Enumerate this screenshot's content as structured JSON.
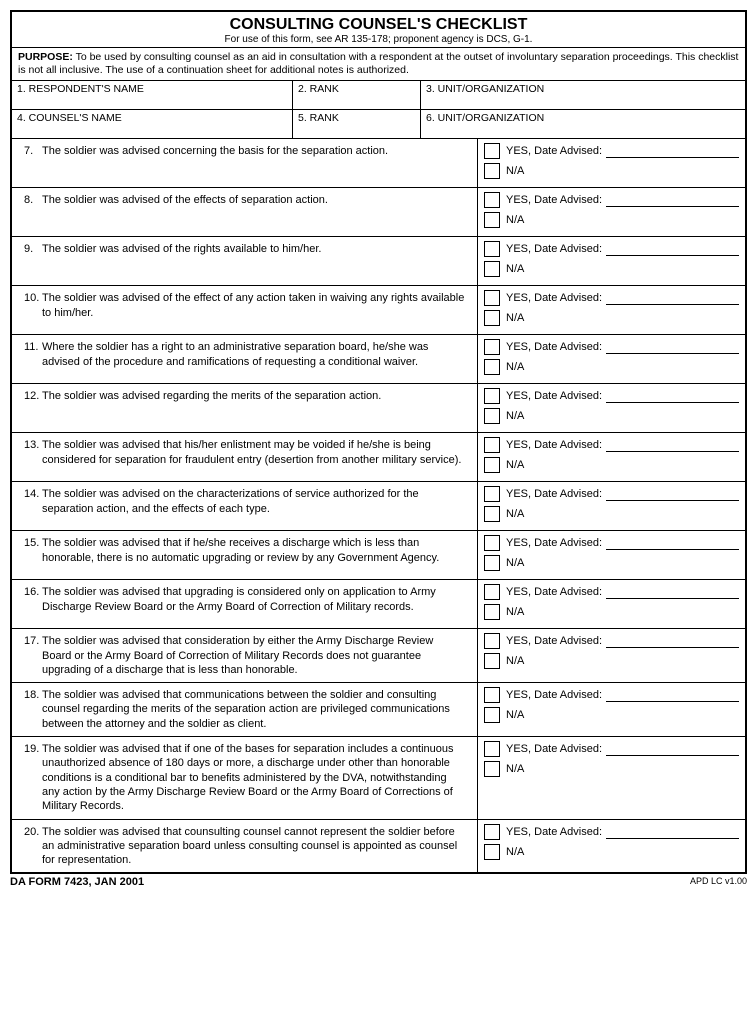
{
  "header": {
    "title": "CONSULTING COUNSEL'S CHECKLIST",
    "subtitle": "For use of this form, see AR 135-178; proponent agency is DCS, G-1."
  },
  "purpose": {
    "label": "PURPOSE:",
    "text": "To be used by consulting counsel as an aid in consultation with a respondent at the outset of involuntary separation proceedings.  This checklist is not all inclusive.  The use of a continuation sheet for additional notes is authorized."
  },
  "fields": {
    "f1": "1. RESPONDENT'S NAME",
    "f2": "2. RANK",
    "f3": "3. UNIT/ORGANIZATION",
    "f4": "4. COUNSEL'S NAME",
    "f5": "5. RANK",
    "f6": "6. UNIT/ORGANIZATION"
  },
  "labels": {
    "yes": "YES, Date Advised:",
    "na": "N/A"
  },
  "items": [
    {
      "num": "7.",
      "text": "The soldier was advised concerning the basis for the separation action."
    },
    {
      "num": "8.",
      "text": "The soldier was advised of the effects of separation action."
    },
    {
      "num": "9.",
      "text": "The soldier was advised of the rights available to him/her."
    },
    {
      "num": "10.",
      "text": "The soldier was advised of the effect of any action taken in waiving any rights available to him/her."
    },
    {
      "num": "11.",
      "text": "Where the soldier has a right to an administrative separation board, he/she was advised of the procedure and ramifications of requesting a conditional waiver."
    },
    {
      "num": "12.",
      "text": "The soldier was advised regarding the merits of the separation action."
    },
    {
      "num": "13.",
      "text": "The soldier was advised that his/her enlistment may be voided if he/she is being considered for separation for fraudulent entry (desertion from another military service)."
    },
    {
      "num": "14.",
      "text": "The soldier was advised on the characterizations of service authorized for the separation action, and the effects of each type."
    },
    {
      "num": "15.",
      "text": "The soldier was advised that if he/she receives a discharge which is less than honorable, there is no automatic upgrading or review by any Government Agency."
    },
    {
      "num": "16.",
      "text": "The soldier was advised that upgrading is considered only on application to Army Discharge Review Board or the Army Board of Correction of Military records."
    },
    {
      "num": "17.",
      "text": "The soldier was advised that consideration by either the Army Discharge Review Board or the Army Board of Correction of Military Records does not guarantee upgrading of a discharge that is less than honorable."
    },
    {
      "num": "18.",
      "text": "The soldier was advised that communications between the soldier and consulting counsel regarding the merits of the separation action are privileged communications between the attorney and the soldier as client."
    },
    {
      "num": "19.",
      "text": "The soldier was advised that if one of the bases for separation includes a continuous unauthorized absence of 180 days or more, a discharge under other than honorable conditions is a conditional bar to benefits administered by the DVA, notwithstanding any action by the Army Discharge Review Board or the Army Board of Corrections of Military Records."
    },
    {
      "num": "20.",
      "text": "The soldier was advised that counsulting counsel cannot represent the soldier before an administrative separation board unless consulting counsel is appointed as counsel for representation."
    }
  ],
  "footer": {
    "left": "DA FORM 7423,  JAN 2001",
    "right": "APD LC v1.00"
  }
}
